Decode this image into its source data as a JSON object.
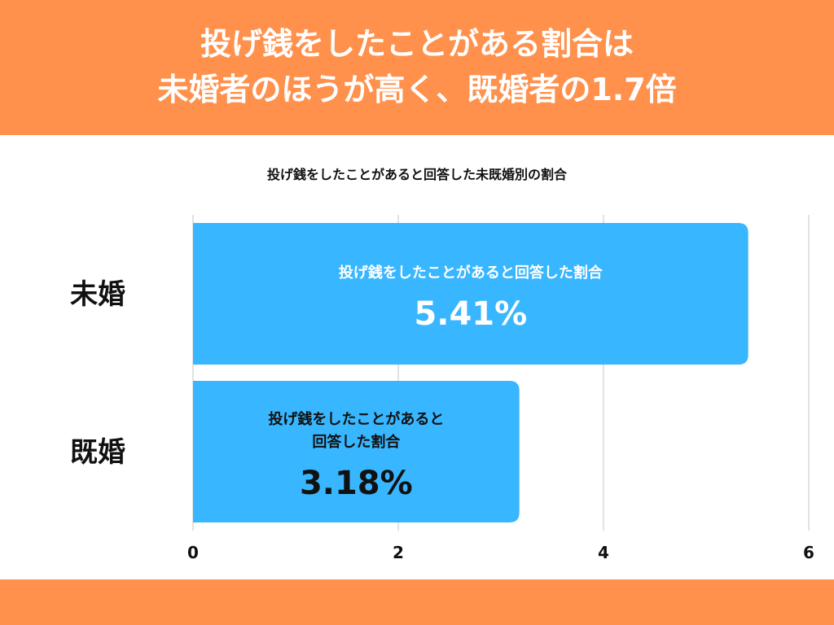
{
  "header": {
    "line1": "投げ銭をしたことがある割合は",
    "line2": "未婚者のほうが高く、既婚者の1.7倍"
  },
  "colors": {
    "accent": "#ff914d",
    "bar": "#38b6ff",
    "grid": "#d9d9d9"
  },
  "chart_data": {
    "type": "bar",
    "orientation": "horizontal",
    "title": "投げ銭をしたことがあると回答した未既婚別の割合",
    "categories": [
      "未婚",
      "既婚"
    ],
    "values": [
      5.41,
      3.18
    ],
    "value_labels": [
      "5.41%",
      "3.18%"
    ],
    "bar_texts": [
      [
        "投げ銭をしたことがあると回答した割合"
      ],
      [
        "投げ銭をしたことがあると",
        "回答した割合"
      ]
    ],
    "value_text_colors": [
      "#ffffff",
      "#111111"
    ],
    "x_ticks": [
      "0",
      "2",
      "4",
      "6"
    ],
    "xlim": [
      0,
      6
    ],
    "grid": true
  }
}
